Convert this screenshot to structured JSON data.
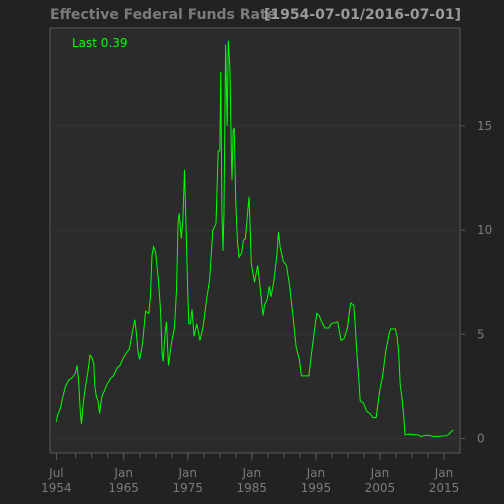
{
  "chart_data": {
    "type": "line",
    "title": "Effective Federal Funds Rate",
    "date_range_label": "[1954-07-01/2016-07-01]",
    "legend": {
      "label": "Last 0.39",
      "placement": "top-left"
    },
    "xlabel": "",
    "ylabel": "",
    "x_ticks": [
      {
        "date": "1954-07",
        "line1": "Jul",
        "line2": "1954"
      },
      {
        "date": "1965-01",
        "line1": "Jan",
        "line2": "1965"
      },
      {
        "date": "1975-01",
        "line1": "Jan",
        "line2": "1975"
      },
      {
        "date": "1985-01",
        "line1": "Jan",
        "line2": "1985"
      },
      {
        "date": "1995-01",
        "line1": "Jan",
        "line2": "1995"
      },
      {
        "date": "2005-01",
        "line1": "Jan",
        "line2": "2005"
      },
      {
        "date": "2015-01",
        "line1": "Jan",
        "line2": "2015"
      }
    ],
    "y_ticks": [
      0,
      5,
      10,
      15
    ],
    "xlim": [
      "1953-07",
      "2017-07"
    ],
    "ylim": [
      -0.7,
      19.7
    ],
    "grid": true,
    "colors": {
      "background": "#222222",
      "plot": "#2b2b2b",
      "line": "#00ff00",
      "grid": "#353535",
      "axis": "#5a5a5a"
    },
    "series": [
      {
        "values": [
          [
            "1954-07",
            0.8
          ],
          [
            "1954-09",
            1.1
          ],
          [
            "1954-12",
            1.3
          ],
          [
            "1955-03",
            1.5
          ],
          [
            "1955-06",
            1.9
          ],
          [
            "1955-09",
            2.2
          ],
          [
            "1955-12",
            2.5
          ],
          [
            "1956-06",
            2.8
          ],
          [
            "1956-12",
            2.9
          ],
          [
            "1957-06",
            3.1
          ],
          [
            "1957-10",
            3.5
          ],
          [
            "1958-01",
            2.6
          ],
          [
            "1958-04",
            1.2
          ],
          [
            "1958-06",
            0.7
          ],
          [
            "1958-09",
            1.6
          ],
          [
            "1959-01",
            2.4
          ],
          [
            "1959-06",
            3.2
          ],
          [
            "1959-10",
            4.0
          ],
          [
            "1960-01",
            3.9
          ],
          [
            "1960-05",
            3.6
          ],
          [
            "1960-07",
            2.5
          ],
          [
            "1960-10",
            2.0
          ],
          [
            "1961-01",
            1.8
          ],
          [
            "1961-04",
            1.2
          ],
          [
            "1961-08",
            2.0
          ],
          [
            "1962-01",
            2.3
          ],
          [
            "1962-06",
            2.6
          ],
          [
            "1963-01",
            2.9
          ],
          [
            "1963-06",
            3.0
          ],
          [
            "1964-01",
            3.4
          ],
          [
            "1964-06",
            3.5
          ],
          [
            "1965-01",
            3.9
          ],
          [
            "1965-06",
            4.1
          ],
          [
            "1965-12",
            4.3
          ],
          [
            "1966-06",
            5.2
          ],
          [
            "1966-10",
            5.7
          ],
          [
            "1967-01",
            5.0
          ],
          [
            "1967-04",
            4.1
          ],
          [
            "1967-07",
            3.8
          ],
          [
            "1967-12",
            4.5
          ],
          [
            "1968-06",
            6.1
          ],
          [
            "1968-12",
            6.0
          ],
          [
            "1969-03",
            6.8
          ],
          [
            "1969-06",
            8.8
          ],
          [
            "1969-09",
            9.2
          ],
          [
            "1970-01",
            8.9
          ],
          [
            "1970-06",
            7.6
          ],
          [
            "1970-10",
            6.2
          ],
          [
            "1971-01",
            4.1
          ],
          [
            "1971-03",
            3.7
          ],
          [
            "1971-06",
            4.9
          ],
          [
            "1971-09",
            5.6
          ],
          [
            "1972-01",
            3.5
          ],
          [
            "1972-06",
            4.5
          ],
          [
            "1972-12",
            5.3
          ],
          [
            "1973-04",
            7.1
          ],
          [
            "1973-07",
            10.4
          ],
          [
            "1973-09",
            10.8
          ],
          [
            "1974-01",
            9.6
          ],
          [
            "1974-04",
            10.5
          ],
          [
            "1974-07",
            12.9
          ],
          [
            "1974-10",
            10.1
          ],
          [
            "1975-01",
            7.1
          ],
          [
            "1975-03",
            5.5
          ],
          [
            "1975-06",
            5.5
          ],
          [
            "1975-09",
            6.2
          ],
          [
            "1976-01",
            4.9
          ],
          [
            "1976-06",
            5.5
          ],
          [
            "1976-12",
            4.7
          ],
          [
            "1977-06",
            5.4
          ],
          [
            "1977-12",
            6.6
          ],
          [
            "1978-06",
            7.6
          ],
          [
            "1978-12",
            10.0
          ],
          [
            "1979-06",
            10.3
          ],
          [
            "1979-10",
            13.8
          ],
          [
            "1980-01",
            13.8
          ],
          [
            "1980-03",
            17.6
          ],
          [
            "1980-05",
            10.9
          ],
          [
            "1980-07",
            9.0
          ],
          [
            "1980-09",
            10.9
          ],
          [
            "1980-12",
            18.9
          ],
          [
            "1981-03",
            15.0
          ],
          [
            "1981-05",
            19.1
          ],
          [
            "1981-08",
            17.8
          ],
          [
            "1981-11",
            13.3
          ],
          [
            "1981-12",
            12.4
          ],
          [
            "1982-02",
            14.8
          ],
          [
            "1982-04",
            14.9
          ],
          [
            "1982-07",
            11.3
          ],
          [
            "1982-10",
            9.5
          ],
          [
            "1983-01",
            8.7
          ],
          [
            "1983-06",
            8.9
          ],
          [
            "1983-09",
            9.5
          ],
          [
            "1984-01",
            9.6
          ],
          [
            "1984-06",
            11.1
          ],
          [
            "1984-08",
            11.6
          ],
          [
            "1984-12",
            8.4
          ],
          [
            "1985-06",
            7.5
          ],
          [
            "1985-12",
            8.3
          ],
          [
            "1986-06",
            6.9
          ],
          [
            "1986-10",
            5.9
          ],
          [
            "1987-01",
            6.4
          ],
          [
            "1987-06",
            6.7
          ],
          [
            "1987-10",
            7.3
          ],
          [
            "1988-01",
            6.8
          ],
          [
            "1988-06",
            7.5
          ],
          [
            "1988-12",
            8.8
          ],
          [
            "1989-03",
            9.9
          ],
          [
            "1989-06",
            9.2
          ],
          [
            "1989-12",
            8.5
          ],
          [
            "1990-06",
            8.3
          ],
          [
            "1990-12",
            7.3
          ],
          [
            "1991-06",
            5.9
          ],
          [
            "1991-12",
            4.4
          ],
          [
            "1992-06",
            3.8
          ],
          [
            "1992-10",
            3.0
          ],
          [
            "1993-06",
            3.0
          ],
          [
            "1993-12",
            3.0
          ],
          [
            "1994-06",
            4.3
          ],
          [
            "1994-12",
            5.5
          ],
          [
            "1995-03",
            6.0
          ],
          [
            "1995-07",
            5.9
          ],
          [
            "1995-12",
            5.6
          ],
          [
            "1996-06",
            5.3
          ],
          [
            "1997-01",
            5.3
          ],
          [
            "1997-06",
            5.5
          ],
          [
            "1998-06",
            5.6
          ],
          [
            "1998-12",
            4.7
          ],
          [
            "1999-06",
            4.8
          ],
          [
            "1999-12",
            5.3
          ],
          [
            "2000-06",
            6.5
          ],
          [
            "2000-12",
            6.4
          ],
          [
            "2001-03",
            5.3
          ],
          [
            "2001-06",
            4.0
          ],
          [
            "2001-09",
            3.0
          ],
          [
            "2001-12",
            1.8
          ],
          [
            "2002-06",
            1.7
          ],
          [
            "2002-12",
            1.3
          ],
          [
            "2003-06",
            1.2
          ],
          [
            "2003-12",
            1.0
          ],
          [
            "2004-06",
            1.0
          ],
          [
            "2004-12",
            2.2
          ],
          [
            "2005-06",
            3.0
          ],
          [
            "2005-12",
            4.2
          ],
          [
            "2006-06",
            5.0
          ],
          [
            "2006-09",
            5.25
          ],
          [
            "2007-06",
            5.25
          ],
          [
            "2007-09",
            4.9
          ],
          [
            "2007-12",
            4.2
          ],
          [
            "2008-03",
            2.6
          ],
          [
            "2008-06",
            2.0
          ],
          [
            "2008-10",
            1.0
          ],
          [
            "2008-12",
            0.16
          ],
          [
            "2009-06",
            0.21
          ],
          [
            "2010-06",
            0.18
          ],
          [
            "2011-01",
            0.17
          ],
          [
            "2011-06",
            0.09
          ],
          [
            "2012-06",
            0.16
          ],
          [
            "2013-06",
            0.09
          ],
          [
            "2014-06",
            0.1
          ],
          [
            "2015-06",
            0.13
          ],
          [
            "2015-12",
            0.24
          ],
          [
            "2016-03",
            0.36
          ],
          [
            "2016-07",
            0.39
          ]
        ]
      }
    ]
  }
}
